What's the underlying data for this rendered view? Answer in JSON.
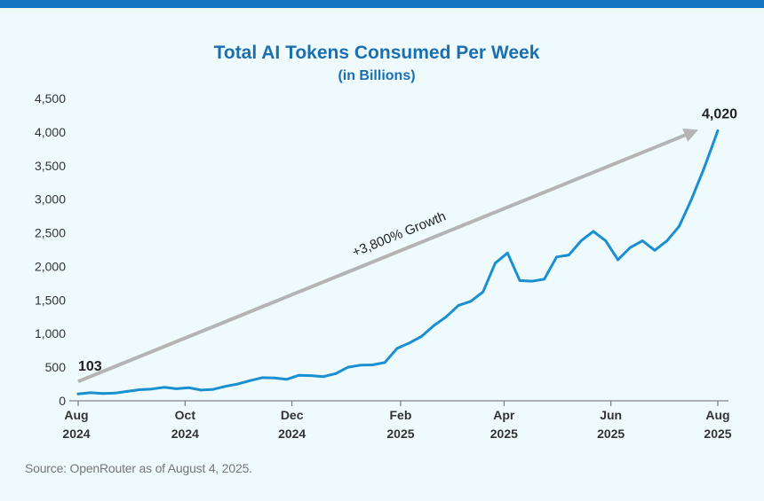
{
  "chart_data": {
    "type": "line",
    "title": "Total AI Tokens Consumed Per Week",
    "subtitle": "(in Billions)",
    "ylim": [
      0,
      4500
    ],
    "y_ticks": [
      "0",
      "500",
      "1,000",
      "1,500",
      "2,000",
      "2,500",
      "3,000",
      "3,500",
      "4,000",
      "4,500"
    ],
    "x_ticks": [
      {
        "line1": "Aug",
        "line2": "2024"
      },
      {
        "line1": "Oct",
        "line2": "2024"
      },
      {
        "line1": "Dec",
        "line2": "2024"
      },
      {
        "line1": "Feb",
        "line2": "2025"
      },
      {
        "line1": "Apr",
        "line2": "2025"
      },
      {
        "line1": "Jun",
        "line2": "2025"
      },
      {
        "line1": "Aug",
        "line2": "2025"
      }
    ],
    "x_tick_dates": [
      "2024-08-01",
      "2024-10-01",
      "2024-12-01",
      "2025-02-01",
      "2025-04-01",
      "2025-06-01",
      "2025-08-01"
    ],
    "grid": false,
    "series": [
      {
        "color": "#1a8fd1",
        "dates": [
          "2024-08-01",
          "2024-08-08",
          "2024-08-15",
          "2024-08-22",
          "2024-08-29",
          "2024-09-05",
          "2024-09-12",
          "2024-09-19",
          "2024-09-26",
          "2024-10-03",
          "2024-10-10",
          "2024-10-17",
          "2024-10-24",
          "2024-10-31",
          "2024-11-07",
          "2024-11-14",
          "2024-11-21",
          "2024-11-28",
          "2024-12-05",
          "2024-12-12",
          "2024-12-19",
          "2024-12-26",
          "2025-01-02",
          "2025-01-09",
          "2025-01-16",
          "2025-01-23",
          "2025-01-30",
          "2025-02-06",
          "2025-02-13",
          "2025-02-20",
          "2025-02-27",
          "2025-03-06",
          "2025-03-13",
          "2025-03-20",
          "2025-03-27",
          "2025-04-03",
          "2025-04-10",
          "2025-04-17",
          "2025-04-24",
          "2025-05-01",
          "2025-05-08",
          "2025-05-15",
          "2025-05-22",
          "2025-05-29",
          "2025-06-05",
          "2025-06-12",
          "2025-06-19",
          "2025-06-26",
          "2025-07-03",
          "2025-07-10",
          "2025-07-17",
          "2025-07-24",
          "2025-08-01"
        ],
        "values": [
          103,
          120,
          110,
          115,
          140,
          165,
          175,
          200,
          180,
          195,
          160,
          170,
          215,
          250,
          300,
          345,
          340,
          320,
          380,
          375,
          360,
          405,
          500,
          530,
          535,
          570,
          780,
          860,
          960,
          1120,
          1250,
          1420,
          1480,
          1620,
          2050,
          2200,
          1790,
          1780,
          1810,
          2140,
          2170,
          2380,
          2520,
          2380,
          2100,
          2280,
          2380,
          2240,
          2380,
          2600,
          3000,
          3450,
          4020
        ]
      }
    ],
    "annotations": {
      "start_label": "103",
      "end_label": "4,020",
      "growth_label": "+3,800% Growth"
    },
    "source": "Source: OpenRouter as of August 4, 2025."
  }
}
